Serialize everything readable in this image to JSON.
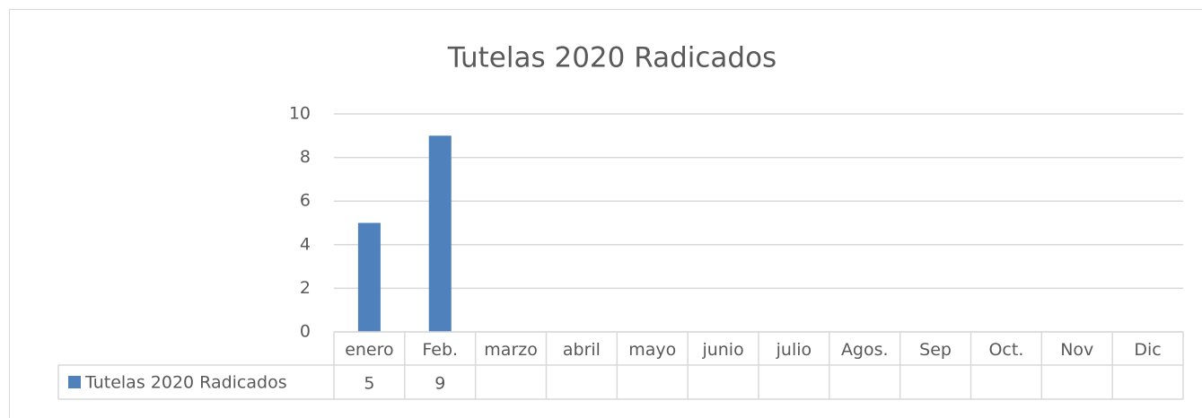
{
  "chart_data": {
    "type": "bar",
    "title": "Tutelas 2020 Radicados",
    "categories": [
      "enero",
      "Feb.",
      "marzo",
      "abril",
      "mayo",
      "junio",
      "julio",
      "Agos.",
      "Sep",
      "Oct.",
      "Nov",
      "Dic"
    ],
    "series": [
      {
        "name": "Tutelas 2020 Radicados",
        "color": "#4f81bd",
        "values": [
          5,
          9,
          null,
          null,
          null,
          null,
          null,
          null,
          null,
          null,
          null,
          null
        ]
      }
    ],
    "ylim": [
      0,
      10
    ],
    "yticks": [
      0,
      2,
      4,
      6,
      8,
      10
    ],
    "grid": true,
    "data_table": true
  }
}
